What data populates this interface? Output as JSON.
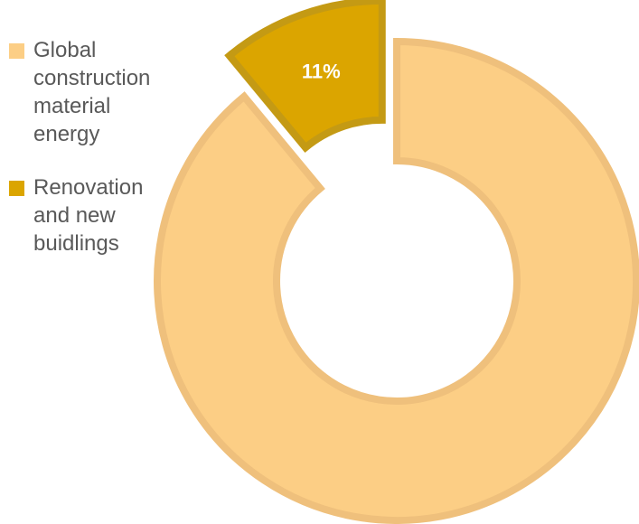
{
  "chart_data": {
    "type": "pie",
    "donut": true,
    "title": "",
    "legend_position": "left",
    "slices": [
      {
        "label": "Global\nconstruction\nmaterial\nenergy",
        "value": 89,
        "color": "#FCCE85",
        "border": "#EFC07C",
        "exploded": false
      },
      {
        "label": "Renovation\nand new\nbuidlings",
        "value": 11,
        "color": "#DBA500",
        "border": "#C49A14",
        "exploded": true,
        "data_label": "11%"
      }
    ]
  }
}
